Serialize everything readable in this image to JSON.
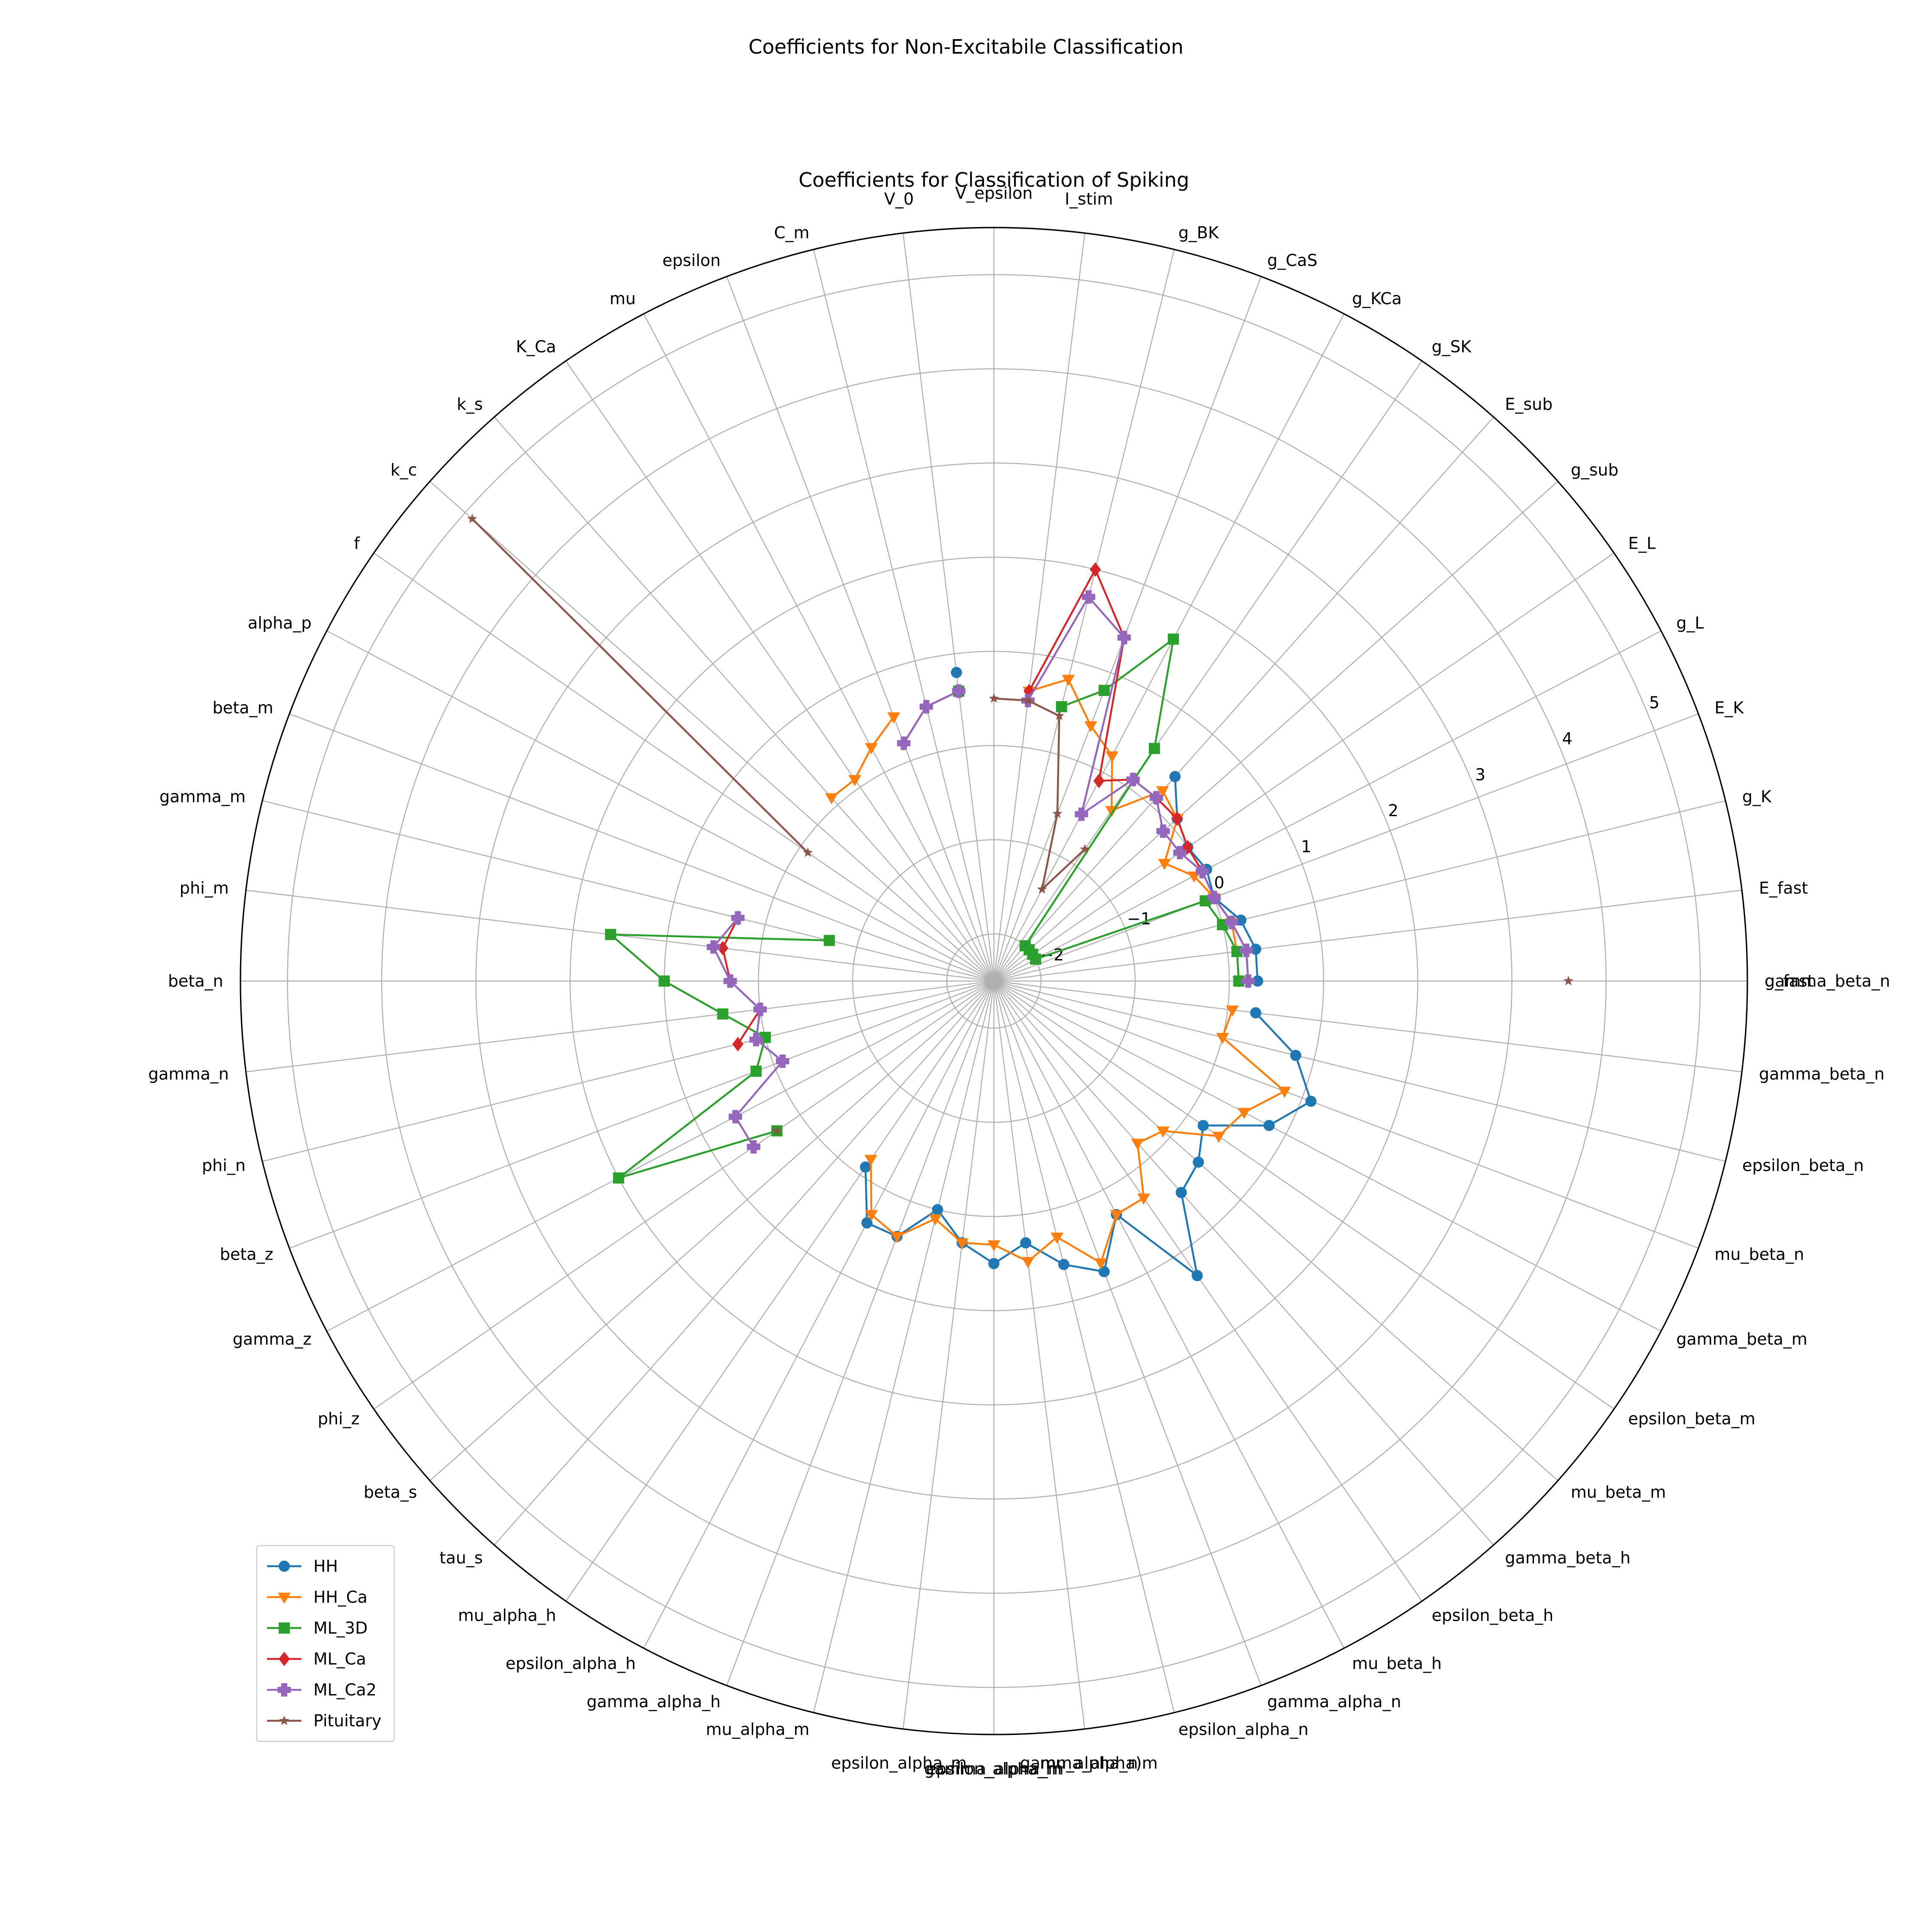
{
  "figure": {
    "suptitle": "Coefficients for Non-Excitabile Classification"
  },
  "chart_data": {
    "type": "radar",
    "title": "Coefficients for Classification of Spiking",
    "rlim": [
      -2.5,
      5.5
    ],
    "rticks": [
      -2,
      -1,
      0,
      1,
      2,
      3,
      4,
      5
    ],
    "rtick_labels": [
      "−2",
      "−1",
      "0",
      "1",
      "2",
      "3",
      "4",
      "5"
    ],
    "grid": true,
    "legend_position": "lower-left",
    "categories": [
      "g_fast",
      "E_fast",
      "g_K",
      "E_K",
      "g_L",
      "E_L",
      "g_sub",
      "E_sub",
      "g_SK",
      "g_KCa",
      "g_CaS",
      "g_BK",
      "I_stim",
      "V_epsilon",
      "V_0",
      "C_m",
      "epsilon",
      "mu",
      "K_Ca",
      "k_s",
      "k_c",
      "f",
      "alpha_p",
      "beta_m",
      "gamma_m",
      "phi_m",
      "beta_n",
      "gamma_n",
      "phi_n",
      "beta_z",
      "gamma_z",
      "phi_z",
      "beta_s",
      "tau_s",
      "mu_alpha_h",
      "epsilon_alpha_h",
      "gamma_alpha_h",
      "mu_alpha_m",
      "epsilon_alpha_m",
      "gamma_alpha_m",
      "mu_alpha_n",
      "epsilon_alpha_n",
      "gamma_alpha_n",
      "mu_beta_h",
      "epsilon_beta_h",
      "gamma_beta_h",
      "mu_beta_m",
      "epsilon_beta_m",
      "gamma_beta_m",
      "mu_beta_n",
      "epsilon_beta_n",
      "gamma_beta_n"
    ],
    "overlap_labels": [
      {
        "text": "gamma_beta_n",
        "index": 0
      },
      {
        "text": "epsilon_alpha_m",
        "index": 39
      },
      {
        "text": "gamma_alpha)m",
        "index": 40
      }
    ],
    "series": [
      {
        "name": "HH",
        "color": "#1f77b4",
        "marker": "circle",
        "values": [
          0.3,
          0.3,
          0.2,
          0.0,
          0.05,
          0.0,
          0.1,
          0.4,
          null,
          null,
          null,
          null,
          null,
          null,
          0.8,
          null,
          null,
          null,
          null,
          null,
          null,
          null,
          null,
          null,
          null,
          null,
          null,
          null,
          null,
          null,
          null,
          null,
          null,
          null,
          -0.1,
          0.4,
          0.4,
          0.0,
          0.3,
          0.5,
          0.3,
          0.6,
          0.8,
          0.3,
          1.3,
          0.5,
          0.4,
          0.2,
          0.8,
          1.1,
          0.8,
          0.3
        ]
      },
      {
        "name": "HH_Ca",
        "color": "#ff7f0e",
        "marker": "triangle-down",
        "values": [
          0.1,
          0.1,
          0.1,
          0.0,
          -0.1,
          -0.3,
          0.1,
          0.2,
          -0.3,
          0.2,
          0.4,
          0.8,
          0.6,
          null,
          null,
          null,
          0.5,
          0.3,
          0.1,
          0.1,
          null,
          null,
          null,
          null,
          null,
          null,
          null,
          null,
          null,
          null,
          null,
          null,
          null,
          null,
          -0.2,
          0.3,
          0.4,
          0.1,
          0.3,
          0.3,
          0.5,
          0.3,
          0.7,
          0.3,
          0.3,
          -0.2,
          -0.1,
          0.4,
          0.5,
          0.8,
          0.0,
          0.05
        ]
      },
      {
        "name": "ML_3D",
        "color": "#2ca02c",
        "marker": "square",
        "values": [
          0.1,
          0.1,
          0.0,
          -0.1,
          -2.0,
          -2.0,
          -2.0,
          -2.0,
          0.5,
          1.6,
          0.8,
          0.5,
          null,
          null,
          0.6,
          null,
          null,
          null,
          null,
          null,
          null,
          null,
          null,
          null,
          -0.7,
          1.6,
          1.0,
          0.4,
          0.0,
          0.2,
          2.0,
          0.3,
          null,
          null,
          null,
          null,
          null,
          null,
          null,
          null,
          null,
          null,
          null,
          null,
          null,
          null,
          null,
          null,
          null,
          null,
          null,
          null
        ]
      },
      {
        "name": "ML_Ca",
        "color": "#d62728",
        "marker": "diamond",
        "values": [
          0.2,
          0.2,
          0.1,
          0.0,
          0.0,
          0.0,
          0.1,
          0.1,
          0.1,
          -0.1,
          1.4,
          2.0,
          0.6,
          null,
          0.6,
          0.5,
          0.2,
          null,
          null,
          null,
          null,
          null,
          null,
          null,
          0.3,
          0.4,
          0.3,
          0.0,
          0.3,
          null,
          null,
          null,
          null,
          null,
          null,
          null,
          null,
          null,
          null,
          null,
          null,
          null,
          null,
          null,
          null,
          null,
          null,
          null,
          null,
          null,
          null,
          null
        ]
      },
      {
        "name": "ML_Ca2",
        "color": "#9467bd",
        "marker": "plus",
        "values": [
          0.2,
          0.2,
          0.1,
          0.0,
          0.0,
          -0.1,
          -0.1,
          0.1,
          0.1,
          -0.5,
          1.4,
          1.7,
          0.5,
          null,
          0.6,
          0.5,
          0.2,
          null,
          null,
          null,
          null,
          null,
          null,
          null,
          0.3,
          0.5,
          0.3,
          0.0,
          0.1,
          -0.1,
          0.6,
          0.6,
          null,
          null,
          null,
          null,
          null,
          null,
          null,
          null,
          null,
          null,
          null,
          null,
          null,
          null,
          null,
          null,
          null,
          null,
          null,
          null
        ]
      },
      {
        "name": "Pituitary",
        "color": "#8c564b",
        "marker": "star",
        "values": [
          3.6,
          null,
          null,
          null,
          null,
          null,
          null,
          null,
          -0.8,
          -1.4,
          -0.6,
          0.4,
          0.5,
          0.5,
          null,
          null,
          null,
          null,
          null,
          null,
          4.9,
          -0.1,
          null,
          null,
          null,
          null,
          null,
          null,
          null,
          null,
          null,
          0.3,
          null,
          null,
          null,
          null,
          null,
          null,
          null,
          null,
          null,
          null,
          null,
          null,
          null,
          null,
          null,
          null,
          null,
          null,
          null,
          null
        ]
      }
    ]
  }
}
